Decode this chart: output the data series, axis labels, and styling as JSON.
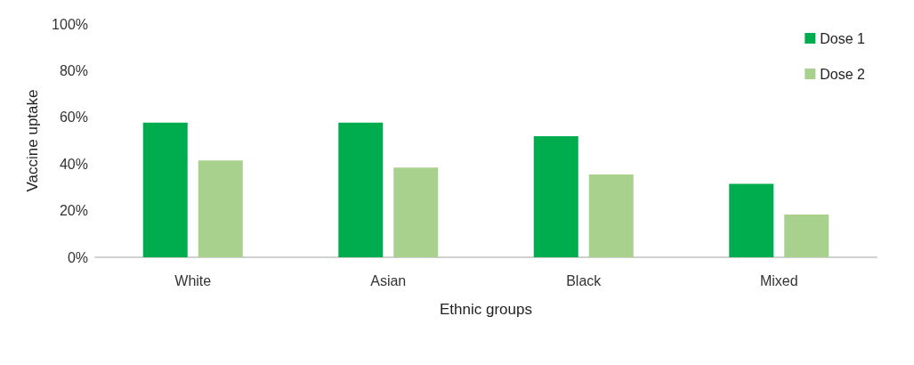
{
  "chart_data": {
    "type": "bar",
    "xlabel": "Ethnic groups",
    "ylabel": "Vaccine uptake",
    "categories": [
      "White",
      "Asian",
      "Black",
      "Mixed"
    ],
    "series": [
      {
        "name": "Dose 1",
        "color": "#00ad4e",
        "values": [
          57.7,
          57.7,
          51.9,
          31.5
        ]
      },
      {
        "name": "Dose 2",
        "color": "#a9d18e",
        "values": [
          41.5,
          38.5,
          35.5,
          18.3
        ]
      }
    ],
    "ylim": [
      0,
      100
    ],
    "yticks": [
      {
        "value": 0,
        "label": "0%"
      },
      {
        "value": 20,
        "label": "20%"
      },
      {
        "value": 40,
        "label": "40%"
      },
      {
        "value": 60,
        "label": "60%"
      },
      {
        "value": 80,
        "label": "80%"
      },
      {
        "value": 100,
        "label": "100%"
      }
    ],
    "grid": false,
    "legend": "top right"
  }
}
